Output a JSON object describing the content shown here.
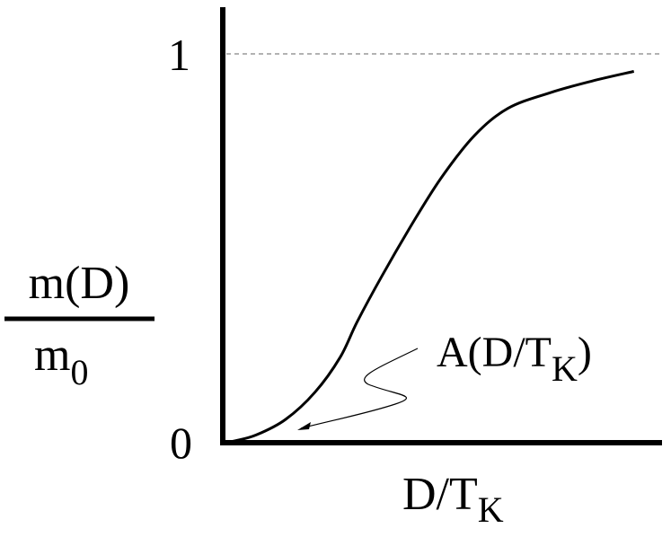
{
  "chart_data": {
    "type": "line",
    "title": "",
    "xlabel": {
      "base": "D/T",
      "sub": "K"
    },
    "ylabel": {
      "numerator": "m(D)",
      "denominator_base": "m",
      "denominator_sub": "0"
    },
    "ylim": [
      0,
      1
    ],
    "xlim": [
      0,
      1
    ],
    "y_ticks": [
      "0",
      "1"
    ],
    "reference_line": {
      "y": 1,
      "style": "dashed",
      "color": "#999999"
    },
    "annotation": {
      "base": "A(D/T",
      "sub": "K",
      "close": ")"
    },
    "series": [
      {
        "values_xy": [
          [
            0.0,
            0.0
          ],
          [
            0.03,
            0.005
          ],
          [
            0.08,
            0.02
          ],
          [
            0.15,
            0.06
          ],
          [
            0.22,
            0.13
          ],
          [
            0.28,
            0.22
          ],
          [
            0.32,
            0.31
          ],
          [
            0.38,
            0.43
          ],
          [
            0.45,
            0.56
          ],
          [
            0.52,
            0.68
          ],
          [
            0.6,
            0.79
          ],
          [
            0.68,
            0.86
          ],
          [
            0.78,
            0.9
          ],
          [
            0.88,
            0.93
          ],
          [
            0.98,
            0.955
          ]
        ],
        "color": "#000000"
      }
    ],
    "grid": false,
    "colors": {
      "axis": "#000000",
      "curve": "#000000",
      "dashed": "#999999"
    }
  }
}
